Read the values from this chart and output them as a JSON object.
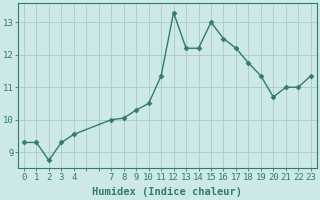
{
  "x": [
    0,
    1,
    2,
    3,
    4,
    7,
    8,
    9,
    10,
    11,
    12,
    13,
    14,
    15,
    16,
    17,
    18,
    19,
    20,
    21,
    22,
    23
  ],
  "y": [
    9.3,
    9.3,
    8.75,
    9.3,
    9.55,
    10.0,
    10.05,
    10.3,
    10.5,
    11.35,
    13.3,
    12.2,
    12.2,
    13.0,
    12.5,
    12.2,
    11.75,
    11.35,
    10.7,
    11.0,
    11.0,
    11.35
  ],
  "line_color": "#2e7d6e",
  "marker": "D",
  "marker_size": 2.5,
  "bg_color": "#cde8e8",
  "grid_color": "#b0cccc",
  "xlabel": "Humidex (Indice chaleur)",
  "xlabel_fontsize": 7.5,
  "tick_fontsize": 6.5,
  "ylim": [
    8.5,
    13.6
  ],
  "yticks": [
    9,
    10,
    11,
    12,
    13
  ],
  "xlim": [
    -0.5,
    23.5
  ],
  "all_xticks": [
    0,
    1,
    2,
    3,
    4,
    5,
    6,
    7,
    8,
    9,
    10,
    11,
    12,
    13,
    14,
    15,
    16,
    17,
    18,
    19,
    20,
    21,
    22,
    23
  ],
  "labeled_xticks": [
    0,
    1,
    2,
    3,
    4,
    7,
    8,
    9,
    10,
    11,
    12,
    13,
    14,
    15,
    16,
    17,
    18,
    19,
    20,
    21,
    22,
    23
  ],
  "tick_color": "#2e7d6e",
  "axis_color": "#2e7d6e"
}
